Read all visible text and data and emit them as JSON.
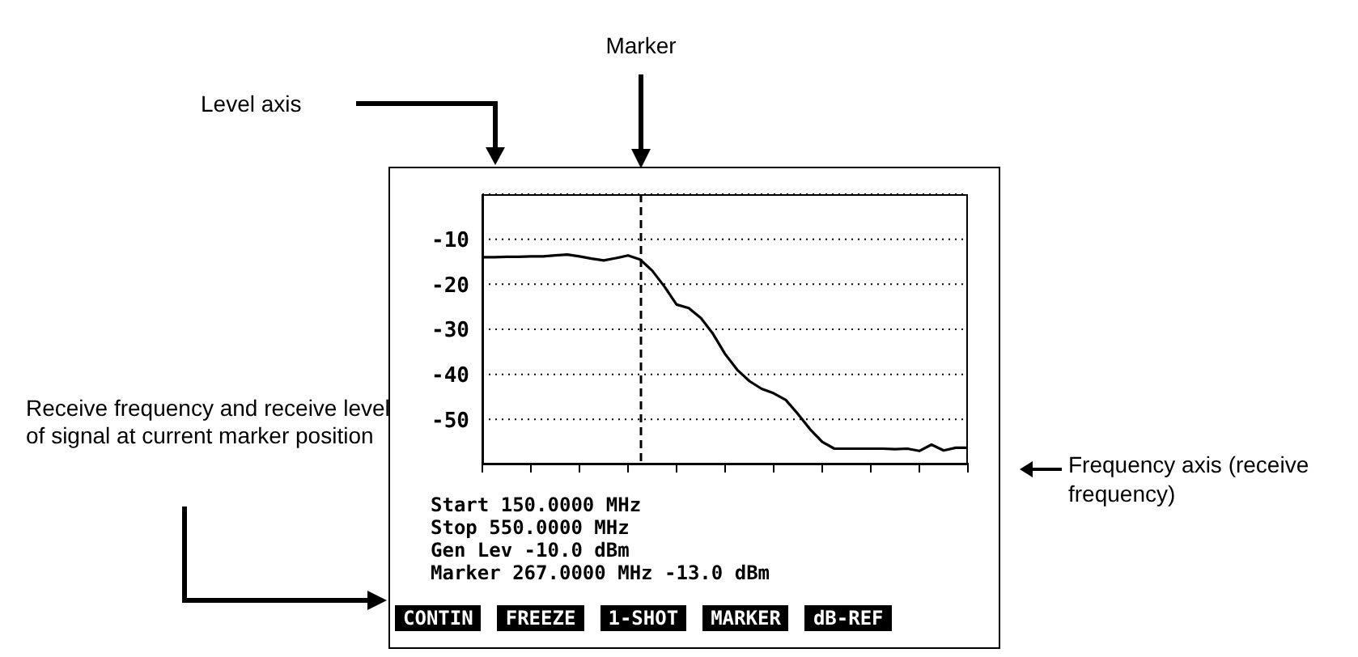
{
  "chart_data": {
    "type": "line",
    "annotations": [
      "Marker",
      "Level axis",
      "Receive frequency and receive level of signal at current marker position",
      "Frequency axis (receive frequency)",
      "Start 150.0000 MHz",
      "Stop 550.0000 MHz",
      "Gen Lev -10.0 dBm",
      "Marker 267.0000 MHz -13.0 dBm",
      "CONTIN",
      "FREEZE",
      "1-SHOT",
      "MARKER",
      "dB-REF"
    ],
    "categories": [
      null,
      null,
      null,
      null,
      null,
      null,
      null,
      null,
      null,
      null,
      null,
      null,
      null,
      null,
      null,
      null,
      null,
      null,
      null,
      null,
      null,
      null,
      null,
      null,
      null,
      null,
      null,
      null,
      null,
      null,
      null,
      null,
      null,
      null,
      null,
      null,
      null,
      null,
      null,
      null,
      null
    ],
    "series": [
      {
        "color": "#000000",
        "values": [
          -14.0,
          -14.0,
          -13.9,
          -13.9,
          -13.8,
          -13.8,
          -13.6,
          -13.4,
          -13.8,
          -14.3,
          -14.7,
          -14.2,
          -13.6,
          -14.5,
          -17.0,
          -20.5,
          -24.5,
          -25.3,
          -27.5,
          -31.0,
          -35.5,
          -39.0,
          -41.5,
          -43.2,
          -44.2,
          -45.7,
          -48.8,
          -52.2,
          -55.0,
          -56.5,
          -56.5,
          -56.5,
          -56.5,
          -56.5,
          -56.6,
          -56.5,
          -57.0,
          -55.6,
          -56.9,
          -56.3,
          -56.3
        ]
      }
    ],
    "ylim": [
      -60,
      0
    ],
    "yticks": [
      -10,
      -20,
      -30,
      -40,
      -50
    ],
    "grid": "y",
    "tick_labels": "y"
  }
}
